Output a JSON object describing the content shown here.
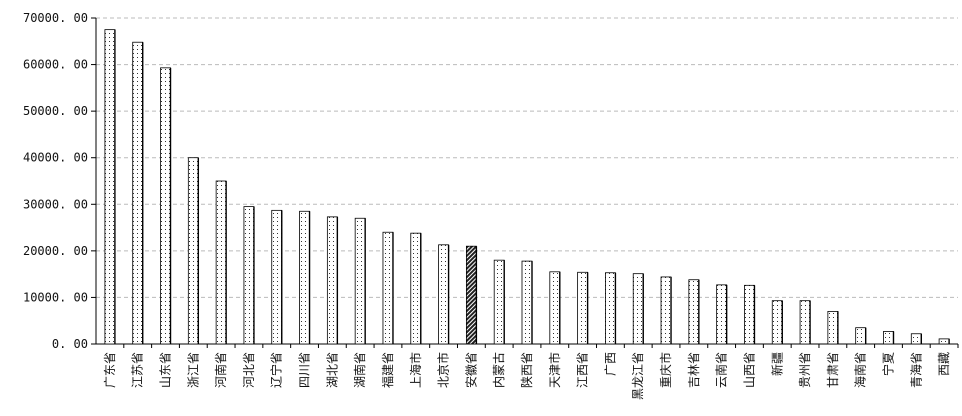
{
  "chart_data": {
    "type": "bar",
    "categories": [
      "广东省",
      "江苏省",
      "山东省",
      "浙江省",
      "河南省",
      "河北省",
      "辽宁省",
      "四川省",
      "湖北省",
      "湖南省",
      "福建省",
      "上海市",
      "北京市",
      "安徽省",
      "内蒙古",
      "陕西省",
      "天津市",
      "江西省",
      "广西",
      "黑龙江省",
      "重庆市",
      "吉林省",
      "云南省",
      "山西省",
      "新疆",
      "贵州省",
      "甘肃省",
      "海南省",
      "宁夏",
      "青海省",
      "西藏"
    ],
    "values": [
      67500,
      64800,
      59300,
      40000,
      35000,
      29500,
      28700,
      28500,
      27300,
      27000,
      24000,
      23800,
      21300,
      21000,
      18000,
      17800,
      15500,
      15400,
      15300,
      15100,
      14400,
      13800,
      12700,
      12600,
      9300,
      9300,
      7000,
      3500,
      2700,
      2200,
      1100
    ],
    "highlight_index": 13,
    "yticks": [
      "70000. 00",
      "60000. 00",
      "50000. 00",
      "40000. 00",
      "30000. 00",
      "20000. 00",
      "10000. 00",
      "0. 00"
    ],
    "ylim": [
      0,
      70000
    ],
    "title": "",
    "xlabel": "",
    "ylabel": "",
    "grid": true
  },
  "colors": {
    "bar_fill": "#ffffff",
    "bar_stroke": "#000000",
    "dot": "#333333",
    "grid": "#bbbbbb",
    "highlight": "#222222"
  }
}
